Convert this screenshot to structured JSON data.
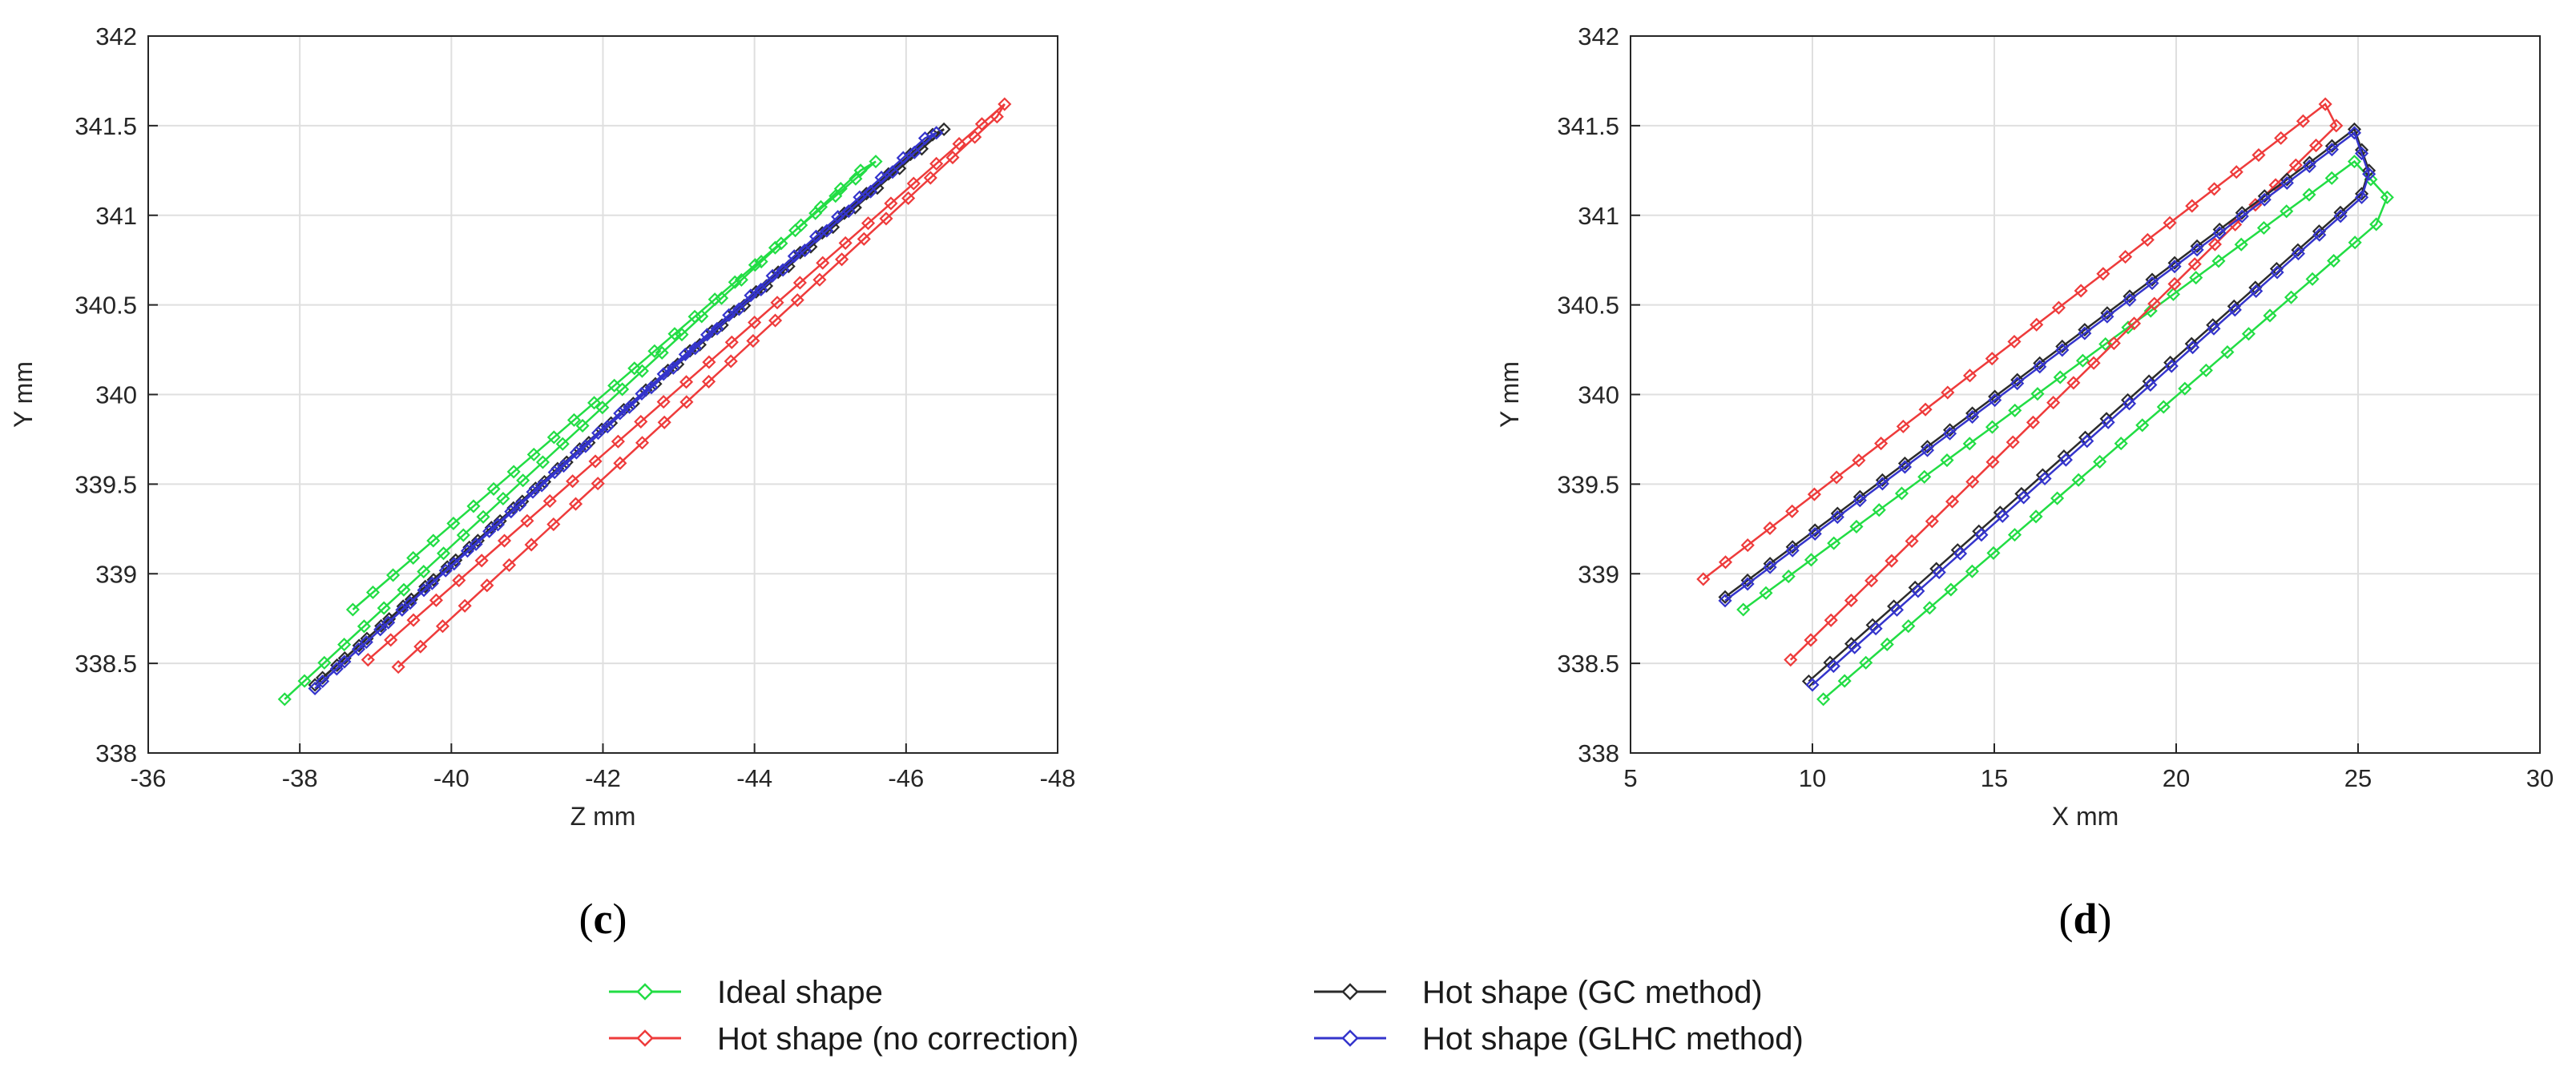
{
  "colors": {
    "ideal": "#22dd44",
    "nocorr": "#ee3b3b",
    "gc": "#2b2b2b",
    "glhc": "#3434cc",
    "grid": "#dfdfdf",
    "axis": "#262626"
  },
  "legend": {
    "entries": [
      {
        "label": "Ideal shape",
        "series": "ideal"
      },
      {
        "label": "Hot shape (no correction)",
        "series": "nocorr"
      },
      {
        "label": "Hot shape (GC method)",
        "series": "gc"
      },
      {
        "label": "Hot shape (GLHC method)",
        "series": "glhc"
      }
    ]
  },
  "chart_data": [
    {
      "type": "line",
      "panel_label_open": "(",
      "panel_label_letter": "c",
      "panel_label_close": ")",
      "xlabel": "Z mm",
      "ylabel": "Y mm",
      "xlim": [
        -36,
        -48
      ],
      "ylim": [
        338,
        342
      ],
      "x_reversed": true,
      "grid": true,
      "xticks": [
        -36,
        -38,
        -40,
        -42,
        -44,
        -46,
        -48
      ],
      "yticks": [
        338,
        338.5,
        339,
        339.5,
        340,
        340.5,
        341,
        341.5,
        342
      ],
      "series": [
        {
          "name": "Ideal shape",
          "key": "ideal",
          "n": 28,
          "segments": [
            [
              [
                -38.7,
                338.8
              ],
              [
                -45.6,
                341.3
              ]
            ],
            [
              [
                -45.6,
                341.3
              ],
              [
                -45.4,
                341.25
              ]
            ],
            [
              [
                -45.4,
                341.25
              ],
              [
                -37.8,
                338.3
              ]
            ]
          ]
        },
        {
          "name": "Hot shape (no correction)",
          "key": "nocorr",
          "n": 28,
          "segments": [
            [
              [
                -38.9,
                338.52
              ],
              [
                -47.3,
                341.62
              ]
            ],
            [
              [
                -47.3,
                341.62
              ],
              [
                -47.2,
                341.55
              ]
            ],
            [
              [
                -47.2,
                341.55
              ],
              [
                -39.3,
                338.48
              ]
            ]
          ]
        },
        {
          "name": "Hot shape (GC method)",
          "key": "gc",
          "n": 28,
          "segments": [
            [
              [
                -38.3,
                338.42
              ],
              [
                -46.5,
                341.48
              ]
            ],
            [
              [
                -46.5,
                341.48
              ],
              [
                -46.35,
                341.45
              ]
            ],
            [
              [
                -46.35,
                341.45
              ],
              [
                -38.2,
                338.38
              ]
            ]
          ]
        },
        {
          "name": "Hot shape (GLHC method)",
          "key": "glhc",
          "n": 28,
          "segments": [
            [
              [
                -38.3,
                338.4
              ],
              [
                -46.4,
                341.46
              ]
            ],
            [
              [
                -46.4,
                341.46
              ],
              [
                -46.25,
                341.43
              ]
            ],
            [
              [
                -46.25,
                341.43
              ],
              [
                -38.2,
                338.36
              ]
            ]
          ]
        }
      ]
    },
    {
      "type": "line",
      "panel_label_open": "(",
      "panel_label_letter": "d",
      "panel_label_close": ")",
      "xlabel": "X mm",
      "ylabel": "Y mm",
      "xlim": [
        5,
        30
      ],
      "ylim": [
        338,
        342
      ],
      "x_reversed": false,
      "grid": true,
      "xticks": [
        5,
        10,
        15,
        20,
        25,
        30
      ],
      "yticks": [
        338,
        338.5,
        339,
        339.5,
        340,
        340.5,
        341,
        341.5,
        342
      ],
      "series": [
        {
          "name": "Ideal shape",
          "key": "ideal",
          "n": 28,
          "segments": [
            [
              [
                8.1,
                338.8
              ],
              [
                24.9,
                341.3
              ]
            ],
            [
              [
                24.9,
                341.3
              ],
              [
                25.8,
                341.1
              ]
            ],
            [
              [
                25.8,
                341.1
              ],
              [
                25.5,
                340.95
              ]
            ],
            [
              [
                25.5,
                340.95
              ],
              [
                10.3,
                338.3
              ]
            ]
          ]
        },
        {
          "name": "Hot shape (no correction)",
          "key": "nocorr",
          "n": 28,
          "segments": [
            [
              [
                7.0,
                338.97
              ],
              [
                24.1,
                341.62
              ]
            ],
            [
              [
                24.1,
                341.62
              ],
              [
                24.4,
                341.5
              ]
            ],
            [
              [
                24.4,
                341.5
              ],
              [
                9.4,
                338.52
              ]
            ]
          ]
        },
        {
          "name": "Hot shape (GC method)",
          "key": "gc",
          "n": 28,
          "segments": [
            [
              [
                7.6,
                338.87
              ],
              [
                24.9,
                341.48
              ]
            ],
            [
              [
                24.9,
                341.48
              ],
              [
                25.3,
                341.25
              ]
            ],
            [
              [
                25.3,
                341.25
              ],
              [
                25.1,
                341.12
              ]
            ],
            [
              [
                25.1,
                341.12
              ],
              [
                9.9,
                338.4
              ]
            ]
          ]
        },
        {
          "name": "Hot shape (GLHC method)",
          "key": "glhc",
          "n": 28,
          "segments": [
            [
              [
                7.6,
                338.85
              ],
              [
                24.9,
                341.46
              ]
            ],
            [
              [
                24.9,
                341.46
              ],
              [
                25.3,
                341.23
              ]
            ],
            [
              [
                25.3,
                341.23
              ],
              [
                25.1,
                341.1
              ]
            ],
            [
              [
                25.1,
                341.1
              ],
              [
                10.0,
                338.38
              ]
            ]
          ]
        }
      ]
    }
  ]
}
